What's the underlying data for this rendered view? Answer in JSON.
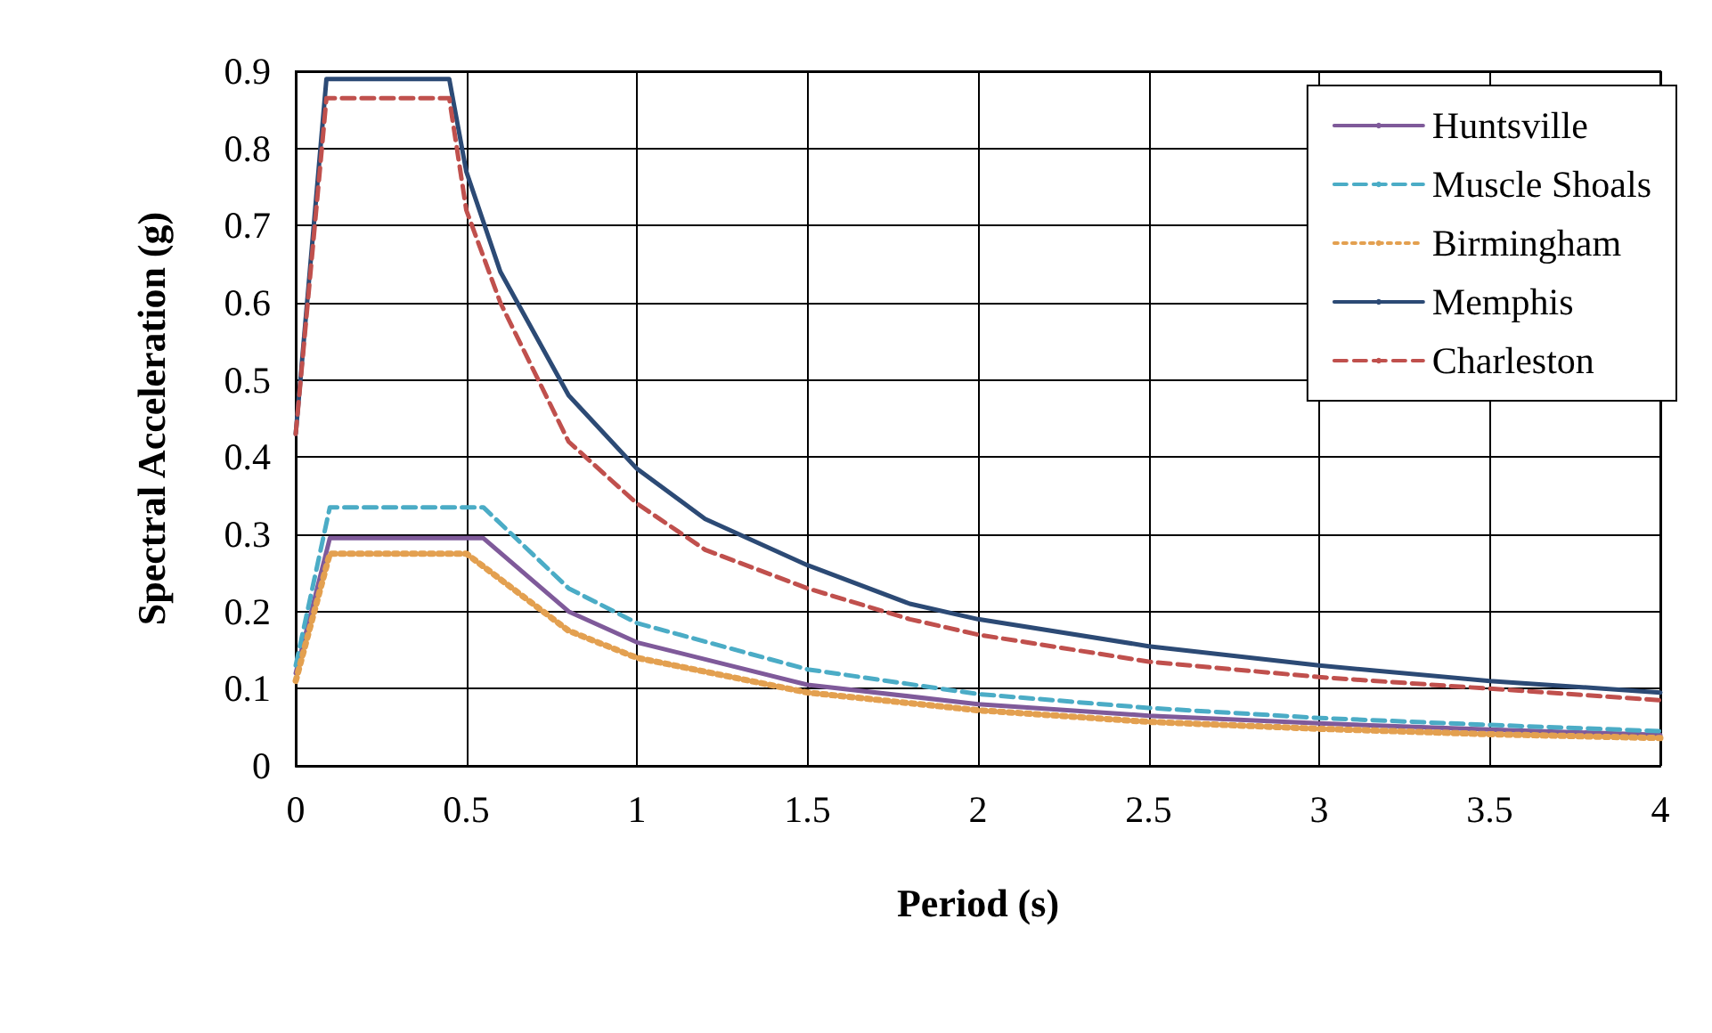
{
  "chart_data": {
    "type": "line",
    "xlabel": "Period (s)",
    "ylabel": "Spectral Acceleration (g)",
    "xlim": [
      0,
      4
    ],
    "xticks": [
      0,
      0.5,
      1,
      1.5,
      2,
      2.5,
      3,
      3.5,
      4
    ],
    "ylim": [
      0,
      0.9
    ],
    "yticks": [
      0,
      0.1,
      0.2,
      0.3,
      0.4,
      0.5,
      0.6,
      0.7,
      0.8,
      0.9
    ],
    "grid": true,
    "legend": "top right",
    "marker": "none",
    "series": [
      {
        "name": "Huntsville",
        "color": "#7f5a9a",
        "line_style": "solid",
        "x": [
          0,
          0.1,
          0.55,
          0.8,
          1,
          1.5,
          2,
          2.5,
          3,
          3.5,
          4
        ],
        "values": [
          0.12,
          0.295,
          0.295,
          0.2,
          0.16,
          0.105,
          0.08,
          0.065,
          0.055,
          0.047,
          0.04
        ]
      },
      {
        "name": "Muscle Shoals",
        "color": "#4bacc6",
        "line_style": "dashed",
        "x": [
          0,
          0.1,
          0.55,
          0.8,
          1,
          1.5,
          2,
          2.5,
          3,
          3.5,
          4
        ],
        "values": [
          0.13,
          0.335,
          0.335,
          0.23,
          0.185,
          0.125,
          0.093,
          0.075,
          0.062,
          0.053,
          0.045
        ]
      },
      {
        "name": "Birmingham",
        "color": "#e3a050",
        "line_style": "dotted",
        "x": [
          0,
          0.1,
          0.5,
          0.8,
          1,
          1.5,
          2,
          2.5,
          3,
          3.5,
          4
        ],
        "values": [
          0.11,
          0.275,
          0.275,
          0.175,
          0.14,
          0.095,
          0.072,
          0.057,
          0.048,
          0.041,
          0.036
        ]
      },
      {
        "name": "Memphis",
        "color": "#2c4a75",
        "line_style": "solid",
        "x": [
          0,
          0.09,
          0.45,
          0.5,
          0.6,
          0.8,
          1,
          1.2,
          1.5,
          1.8,
          2,
          2.5,
          3,
          3.5,
          4
        ],
        "values": [
          0.43,
          0.89,
          0.89,
          0.77,
          0.64,
          0.48,
          0.385,
          0.32,
          0.26,
          0.21,
          0.19,
          0.155,
          0.13,
          0.11,
          0.095
        ]
      },
      {
        "name": "Charleston",
        "color": "#c0504d",
        "line_style": "dashed",
        "x": [
          0,
          0.09,
          0.45,
          0.5,
          0.6,
          0.8,
          1,
          1.2,
          1.5,
          1.8,
          2,
          2.5,
          3,
          3.5,
          4
        ],
        "values": [
          0.43,
          0.865,
          0.865,
          0.72,
          0.6,
          0.42,
          0.34,
          0.28,
          0.23,
          0.19,
          0.17,
          0.135,
          0.115,
          0.1,
          0.085
        ]
      }
    ]
  }
}
